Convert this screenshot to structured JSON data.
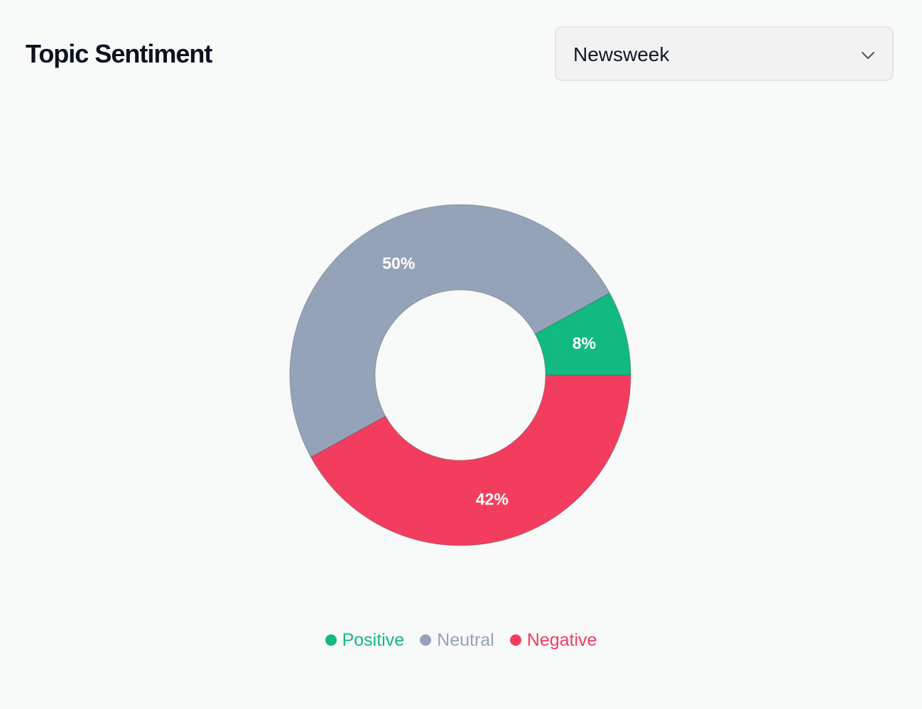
{
  "header": {
    "title": "Topic Sentiment",
    "source_select": {
      "value": "Newsweek",
      "icon": "chevron-down-icon"
    }
  },
  "chart_data": {
    "type": "pie",
    "variant": "donut",
    "categories": [
      "Positive",
      "Neutral",
      "Negative"
    ],
    "values": [
      8,
      50,
      42
    ],
    "labels": [
      "8%",
      "50%",
      "42%"
    ],
    "colors": [
      "#12b981",
      "#95a3b8",
      "#f33d5e"
    ],
    "legend_position": "bottom"
  }
}
